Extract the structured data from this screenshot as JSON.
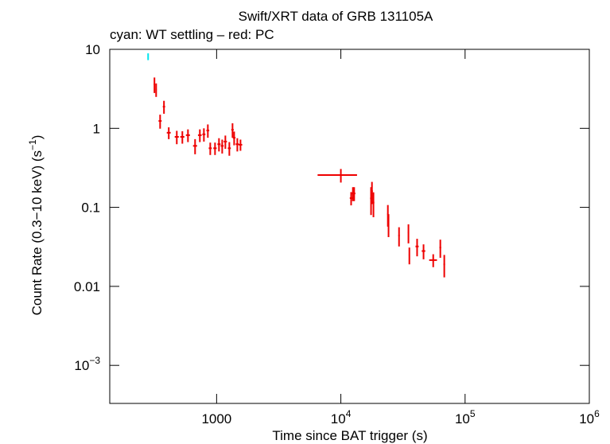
{
  "chart_data": {
    "type": "scatter",
    "title": "Swift/XRT data of GRB 131105A",
    "subtitle": "cyan: WT settling – red: PC",
    "x_label": "Time since BAT trigger (s)",
    "y_label": "Count Rate (0.3−10 keV) (s",
    "y_label_sup": "−1",
    "y_label_end": ")",
    "x_log": true,
    "y_log": true,
    "xlim": [
      138,
      1000000
    ],
    "ylim": [
      0.00033,
      10
    ],
    "xticks": [
      1000,
      {
        "value": 10000,
        "label": "10",
        "exponent": "4"
      },
      {
        "value": 100000,
        "label": "10",
        "exponent": "5"
      },
      {
        "value": 1000000,
        "label": "10",
        "exponent": "6"
      }
    ],
    "yticks": [
      {
        "value": 0.001,
        "label": "10",
        "exponent": "−3"
      },
      0.01,
      0.1,
      1,
      10
    ],
    "series": [
      {
        "name": "WT settling",
        "color": "#00e5ee",
        "x": [
          281
        ],
        "x_err": [
          3
        ],
        "values": [
          8.1
        ],
        "y_err": [
          0.8
        ]
      },
      {
        "name": "PC",
        "color": "#ee0000",
        "x": [
          316,
          326,
          351,
          377,
          412,
          478,
          530,
          588,
          671,
          733,
          790,
          850,
          889,
          971,
          1045,
          1109,
          1176,
          1266,
          1343,
          1384,
          1468,
          1557,
          10000,
          12100,
          12500,
          12800,
          17500,
          17800,
          18300,
          23900,
          24200,
          29400,
          35000,
          35600,
          41100,
          46300,
          55400,
          63200,
          68000
        ],
        "x_err": [
          4,
          4,
          10,
          8,
          15,
          18,
          20,
          22,
          25,
          25,
          22,
          22,
          25,
          30,
          30,
          30,
          35,
          35,
          30,
          35,
          45,
          50,
          3500,
          300,
          300,
          300,
          300,
          300,
          300,
          300,
          300,
          400,
          400,
          400,
          1200,
          1500,
          4000,
          1000,
          1000
        ],
        "values": [
          3.6,
          3.1,
          1.24,
          1.88,
          0.88,
          0.78,
          0.78,
          0.82,
          0.6,
          0.82,
          0.84,
          0.94,
          0.56,
          0.56,
          0.63,
          0.6,
          0.68,
          0.56,
          0.96,
          0.76,
          0.63,
          0.62,
          0.256,
          0.131,
          0.15,
          0.15,
          0.13,
          0.16,
          0.115,
          0.082,
          0.062,
          0.044,
          0.048,
          0.025,
          0.032,
          0.028,
          0.0215,
          0.031,
          0.019
        ],
        "y_err": [
          0.8,
          0.6,
          0.25,
          0.35,
          0.15,
          0.15,
          0.14,
          0.15,
          0.13,
          0.15,
          0.16,
          0.18,
          0.1,
          0.1,
          0.12,
          0.12,
          0.13,
          0.11,
          0.2,
          0.15,
          0.12,
          0.1,
          0.05,
          0.025,
          0.03,
          0.03,
          0.05,
          0.05,
          0.04,
          0.025,
          0.02,
          0.012,
          0.013,
          0.006,
          0.008,
          0.006,
          0.004,
          0.008,
          0.006
        ]
      }
    ]
  }
}
